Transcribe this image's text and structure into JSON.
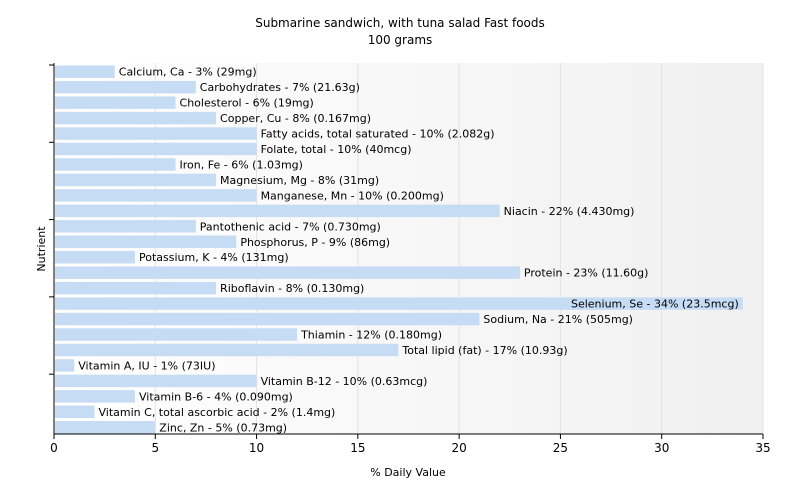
{
  "chart_data": {
    "type": "bar",
    "orientation": "horizontal",
    "title": "Submarine sandwich, with tuna salad Fast foods",
    "subtitle": "100 grams",
    "xlabel": "% Daily Value",
    "ylabel": "Nutrient",
    "xlim": [
      0,
      35
    ],
    "xticks": [
      0,
      5,
      10,
      15,
      20,
      25,
      30,
      35
    ],
    "grid": true,
    "bar_color": "#c6dcf5",
    "categories": [
      "Calcium, Ca",
      "Carbohydrates",
      "Cholesterol",
      "Copper, Cu",
      "Fatty acids, total saturated",
      "Folate, total",
      "Iron, Fe",
      "Magnesium, Mg",
      "Manganese, Mn",
      "Niacin",
      "Pantothenic acid",
      "Phosphorus, P",
      "Potassium, K",
      "Protein",
      "Riboflavin",
      "Selenium, Se",
      "Sodium, Na",
      "Thiamin",
      "Total lipid (fat)",
      "Vitamin A, IU",
      "Vitamin B-12",
      "Vitamin B-6",
      "Vitamin C, total ascorbic acid",
      "Zinc, Zn"
    ],
    "values": [
      3,
      7,
      6,
      8,
      10,
      10,
      6,
      8,
      10,
      22,
      7,
      9,
      4,
      23,
      8,
      34,
      21,
      12,
      17,
      1,
      10,
      4,
      2,
      5
    ],
    "labels": [
      "Calcium, Ca - 3% (29mg)",
      "Carbohydrates - 7% (21.63g)",
      "Cholesterol - 6% (19mg)",
      "Copper, Cu - 8% (0.167mg)",
      "Fatty acids, total saturated - 10% (2.082g)",
      "Folate, total - 10% (40mcg)",
      "Iron, Fe - 6% (1.03mg)",
      "Magnesium, Mg - 8% (31mg)",
      "Manganese, Mn - 10% (0.200mg)",
      "Niacin - 22% (4.430mg)",
      "Pantothenic acid - 7% (0.730mg)",
      "Phosphorus, P - 9% (86mg)",
      "Potassium, K - 4% (131mg)",
      "Protein - 23% (11.60g)",
      "Riboflavin - 8% (0.130mg)",
      "Selenium, Se - 34% (23.5mcg)",
      "Sodium, Na - 21% (505mg)",
      "Thiamin - 12% (0.180mg)",
      "Total lipid (fat) - 17% (10.93g)",
      "Vitamin A, IU - 1% (73IU)",
      "Vitamin B-12 - 10% (0.63mcg)",
      "Vitamin B-6 - 4% (0.090mg)",
      "Vitamin C, total ascorbic acid - 2% (1.4mg)",
      "Zinc, Zn - 5% (0.73mg)"
    ]
  }
}
